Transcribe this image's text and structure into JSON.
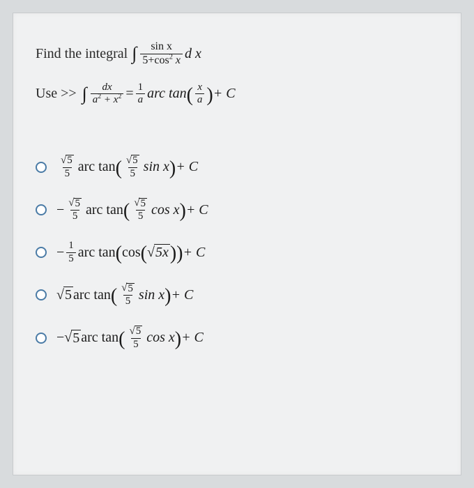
{
  "colors": {
    "page_bg": "#d8dbdd",
    "paper_bg": "#f0f1f2",
    "text": "#2a2a2a",
    "math_text": "#1a1a1a",
    "radio_border": "#4a7ba6"
  },
  "typography": {
    "body_fontsize_pt": 20,
    "frac_fontsize_pt": 15,
    "font_family": "Times New Roman"
  },
  "question": {
    "prompt_prefix": "Find the integral ",
    "integrand_num": "sin x",
    "integrand_den_a": "5+cos",
    "integrand_den_exp": "2",
    "integrand_den_b": " x",
    "dx": "d x"
  },
  "hint": {
    "prefix": "Use >>",
    "lhs_num": "dx",
    "lhs_den_a": "a",
    "lhs_den_aexp": "2",
    "lhs_den_plus": " + x",
    "lhs_den_bexp": "2",
    "eq": " = ",
    "rhs_frac_num": "1",
    "rhs_frac_den": "a",
    "rhs_fn": "arc tan ",
    "rhs_arg_num": "x",
    "rhs_arg_den": "a",
    "rhs_tail": " + C"
  },
  "options": [
    {
      "sign": "",
      "coeff_num_sqrt": "5",
      "coeff_den": "5",
      "fn": "arc tan",
      "inner_frac_num_sqrt": "5",
      "inner_frac_den": "5",
      "trig": "sin x",
      "tail": " + C"
    },
    {
      "sign": "−",
      "coeff_num_sqrt": "5",
      "coeff_den": "5",
      "fn": "arc tan",
      "inner_frac_num_sqrt": "5",
      "inner_frac_den": "5",
      "trig": "cos x",
      "tail": " + C"
    },
    {
      "sign": "−",
      "coeff_simple_num": "1",
      "coeff_simple_den": "5",
      "fn": "arc tan",
      "inner_cos_prefix": "cos",
      "inner_sqrt": "5x",
      "tail": " + C"
    },
    {
      "sign": "",
      "coeff_sqrt_inline": "5",
      "fn": "arc tan",
      "inner_frac_num_sqrt": "5",
      "inner_frac_den": "5",
      "trig": "sin x",
      "tail": " + C"
    },
    {
      "sign": "−",
      "coeff_sqrt_inline": "5",
      "fn": "arc tan",
      "inner_frac_num_sqrt": "5",
      "inner_frac_den": "5",
      "trig": "cos x",
      "tail": " + C"
    }
  ]
}
